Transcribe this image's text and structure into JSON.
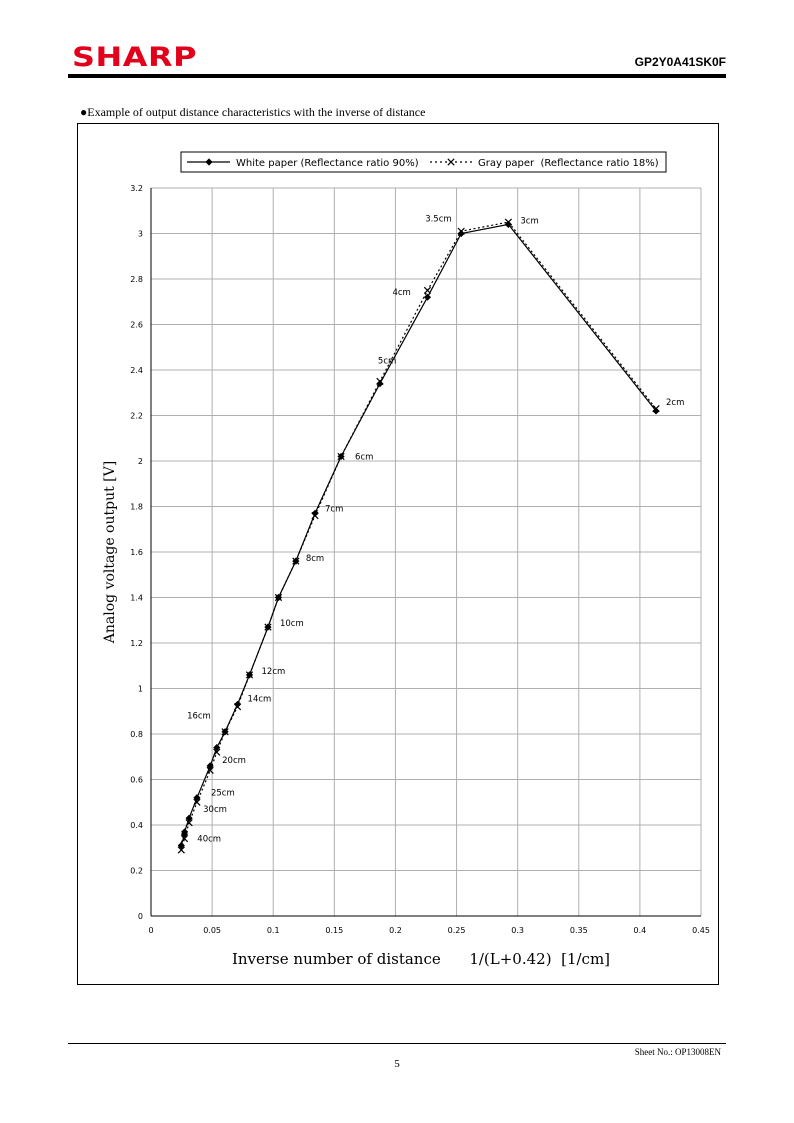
{
  "header": {
    "logo": "SHARP",
    "model": "GP2Y0A41SK0F"
  },
  "caption": "●Example of output distance characteristics with the inverse of distance",
  "colors": {
    "brand": "#e2001a",
    "ink": "#000000",
    "grid": "#b0b0b0"
  },
  "chart_data": {
    "type": "line",
    "xlabel": "Inverse number of distance      1/(L+0.42)  [1/cm]",
    "ylabel": "Analog voltage output [V]",
    "xlim": [
      0,
      0.45
    ],
    "ylim": [
      0,
      3.2
    ],
    "x_ticks": [
      "0",
      "0.05",
      "0.1",
      "0.15",
      "0.2",
      "0.25",
      "0.3",
      "0.35",
      "0.4",
      "0.45"
    ],
    "y_ticks": [
      "0",
      "0.2",
      "0.4",
      "0.6",
      "0.8",
      "1",
      "1.2",
      "1.4",
      "1.6",
      "1.8",
      "2",
      "2.2",
      "2.4",
      "2.6",
      "2.8",
      "3",
      "3.2"
    ],
    "grid": true,
    "legend_position": "top",
    "series": [
      {
        "name": "White paper (Reflectance ratio 90%)",
        "line": "solid",
        "marker": "diamond",
        "points": [
          [
            0.0248,
            0.31
          ],
          [
            0.0274,
            0.36
          ],
          [
            0.0275,
            0.37
          ],
          [
            0.0312,
            0.43
          ],
          [
            0.0376,
            0.52
          ],
          [
            0.0484,
            0.66
          ],
          [
            0.0538,
            0.74
          ],
          [
            0.0606,
            0.81
          ],
          [
            0.0708,
            0.93
          ],
          [
            0.0806,
            1.06
          ],
          [
            0.1043,
            1.4
          ],
          [
            0.0957,
            1.27
          ],
          [
            0.1185,
            1.56
          ],
          [
            0.1342,
            1.77
          ],
          [
            0.1555,
            2.02
          ],
          [
            0.1873,
            2.34
          ],
          [
            0.2262,
            2.72
          ],
          [
            0.2538,
            3.0
          ],
          [
            0.2924,
            3.04
          ],
          [
            0.4132,
            2.22
          ]
        ]
      },
      {
        "name": "Gray paper  (Reflectance ratio 18%)",
        "line": "dotted",
        "marker": "x",
        "points": [
          [
            0.0248,
            0.29
          ],
          [
            0.0274,
            0.34
          ],
          [
            0.0312,
            0.41
          ],
          [
            0.0376,
            0.5
          ],
          [
            0.0484,
            0.64
          ],
          [
            0.0538,
            0.72
          ],
          [
            0.0606,
            0.81
          ],
          [
            0.0708,
            0.92
          ],
          [
            0.0806,
            1.06
          ],
          [
            0.0957,
            1.27
          ],
          [
            0.1043,
            1.4
          ],
          [
            0.1185,
            1.56
          ],
          [
            0.1342,
            1.76
          ],
          [
            0.1555,
            2.02
          ],
          [
            0.1873,
            2.35
          ],
          [
            0.2262,
            2.75
          ],
          [
            0.2538,
            3.01
          ],
          [
            0.2924,
            3.05
          ],
          [
            0.4132,
            2.23
          ]
        ]
      }
    ],
    "annotations": [
      {
        "text": "40cm",
        "x": 0.0248,
        "y": 0.31
      },
      {
        "text": "30cm",
        "x": 0.0312,
        "y": 0.43
      },
      {
        "text": "25cm",
        "x": 0.0376,
        "y": 0.52
      },
      {
        "text": "20cm",
        "x": 0.0484,
        "y": 0.66
      },
      {
        "text": "16cm",
        "x": 0.0606,
        "y": 0.81
      },
      {
        "text": "14cm",
        "x": 0.0708,
        "y": 0.93
      },
      {
        "text": "12cm",
        "x": 0.0806,
        "y": 1.06
      },
      {
        "text": "10cm",
        "x": 0.0957,
        "y": 1.27
      },
      {
        "text": "8cm",
        "x": 0.1185,
        "y": 1.56
      },
      {
        "text": "7cm",
        "x": 0.1342,
        "y": 1.77
      },
      {
        "text": "6cm",
        "x": 0.1555,
        "y": 2.02
      },
      {
        "text": "5cm",
        "x": 0.1873,
        "y": 2.34
      },
      {
        "text": "4cm",
        "x": 0.2262,
        "y": 2.72
      },
      {
        "text": "3.5cm",
        "x": 0.2538,
        "y": 3.0
      },
      {
        "text": "3cm",
        "x": 0.2924,
        "y": 3.04
      },
      {
        "text": "2cm",
        "x": 0.4132,
        "y": 2.22
      }
    ]
  },
  "footer": {
    "sheet": "Sheet No.: OP13008EN",
    "page": "5"
  }
}
